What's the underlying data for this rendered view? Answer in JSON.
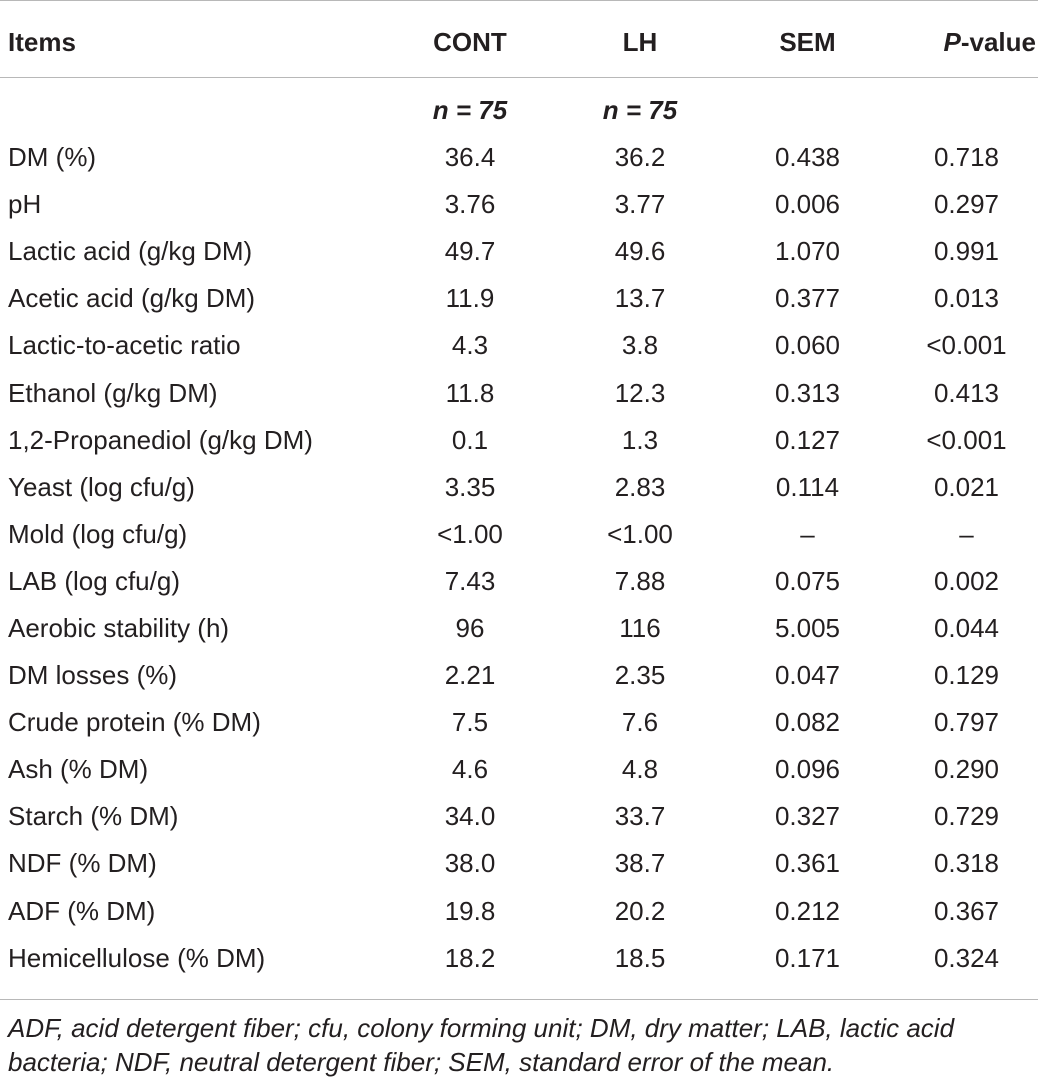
{
  "headers": {
    "items": "Items",
    "cont": "CONT",
    "lh": "LH",
    "sem": "SEM",
    "p_italic": "P",
    "p_suffix": "-value"
  },
  "n_row": {
    "cont": "n = 75",
    "lh": "n = 75"
  },
  "rows": [
    {
      "item": "DM (%)",
      "cont": "36.4",
      "lh": "36.2",
      "sem": "0.438",
      "p": "0.718"
    },
    {
      "item": "pH",
      "cont": "3.76",
      "lh": "3.77",
      "sem": "0.006",
      "p": "0.297"
    },
    {
      "item": "Lactic acid (g/kg DM)",
      "cont": "49.7",
      "lh": "49.6",
      "sem": "1.070",
      "p": "0.991"
    },
    {
      "item": "Acetic acid (g/kg DM)",
      "cont": "11.9",
      "lh": "13.7",
      "sem": "0.377",
      "p": "0.013"
    },
    {
      "item": "Lactic-to-acetic ratio",
      "cont": "4.3",
      "lh": "3.8",
      "sem": "0.060",
      "p": "<0.001"
    },
    {
      "item": "Ethanol (g/kg DM)",
      "cont": "11.8",
      "lh": "12.3",
      "sem": "0.313",
      "p": "0.413"
    },
    {
      "item": "1,2-Propanediol (g/kg DM)",
      "cont": "0.1",
      "lh": "1.3",
      "sem": "0.127",
      "p": "<0.001"
    },
    {
      "item": "Yeast (log cfu/g)",
      "cont": "3.35",
      "lh": "2.83",
      "sem": "0.114",
      "p": "0.021"
    },
    {
      "item": "Mold (log cfu/g)",
      "cont": "<1.00",
      "lh": "<1.00",
      "sem": "–",
      "p": "–"
    },
    {
      "item": "LAB (log cfu/g)",
      "cont": "7.43",
      "lh": "7.88",
      "sem": "0.075",
      "p": "0.002"
    },
    {
      "item": "Aerobic stability (h)",
      "cont": "96",
      "lh": "116",
      "sem": "5.005",
      "p": "0.044"
    },
    {
      "item": "DM losses (%)",
      "cont": "2.21",
      "lh": "2.35",
      "sem": "0.047",
      "p": "0.129"
    },
    {
      "item": "Crude protein (% DM)",
      "cont": "7.5",
      "lh": "7.6",
      "sem": "0.082",
      "p": "0.797"
    },
    {
      "item": "Ash (% DM)",
      "cont": "4.6",
      "lh": "4.8",
      "sem": "0.096",
      "p": "0.290"
    },
    {
      "item": "Starch (% DM)",
      "cont": "34.0",
      "lh": "33.7",
      "sem": "0.327",
      "p": "0.729"
    },
    {
      "item": "NDF (% DM)",
      "cont": "38.0",
      "lh": "38.7",
      "sem": "0.361",
      "p": "0.318"
    },
    {
      "item": "ADF (% DM)",
      "cont": "19.8",
      "lh": "20.2",
      "sem": "0.212",
      "p": "0.367"
    },
    {
      "item": "Hemicellulose (% DM)",
      "cont": "18.2",
      "lh": "18.5",
      "sem": "0.171",
      "p": "0.324"
    }
  ],
  "footnote": "ADF, acid detergent fiber; cfu, colony forming unit; DM, dry matter; LAB, lactic acid bacteria; NDF, neutral detergent fiber; SEM, standard error of the mean."
}
